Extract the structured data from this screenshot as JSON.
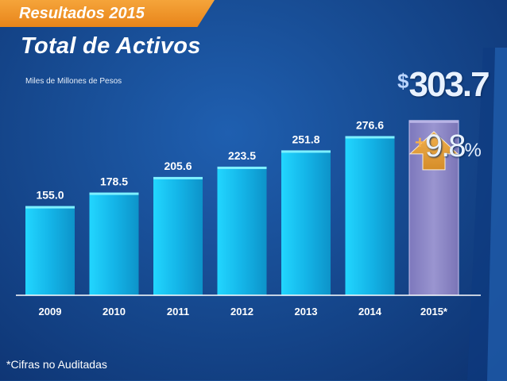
{
  "header": {
    "section_label": "Resultados 2015",
    "title": "Total de Activos",
    "units": "Miles de Millones de Pesos"
  },
  "highlight": {
    "currency": "$",
    "value": "303.7",
    "growth_sign": "+",
    "growth_value": "9.8",
    "growth_unit": "%"
  },
  "footnote": "*Cifras no Auditadas",
  "colors": {
    "bar": "#19c3ee",
    "highlight_bar": "#8e88c8",
    "arrow": "#f0a63a"
  },
  "chart_data": {
    "type": "bar",
    "title": "Total de Activos",
    "ylabel": "Miles de Millones de Pesos",
    "xlabel": "",
    "categories": [
      "2009",
      "2010",
      "2011",
      "2012",
      "2013",
      "2014",
      "2015*"
    ],
    "values": [
      155.0,
      178.5,
      205.6,
      223.5,
      251.8,
      276.6,
      303.7
    ],
    "data_labels": [
      "155.0",
      "178.5",
      "205.6",
      "223.5",
      "251.8",
      "276.6",
      ""
    ],
    "highlight_index": 6,
    "ylim": [
      0,
      300
    ],
    "grid": false,
    "legend": "none"
  }
}
